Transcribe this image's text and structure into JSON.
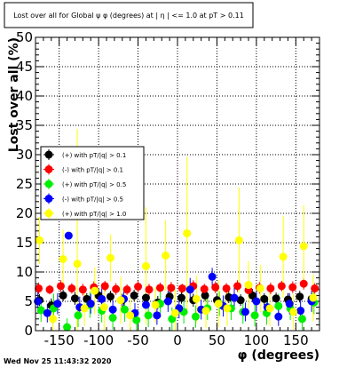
{
  "chart_data": {
    "type": "scatter",
    "title": "Lost over all for Global ψ φ (degrees) at | η | <= 1.0 at pT > 0.11",
    "xlabel": "φ (degrees)",
    "ylabel": "Lost over all (%)",
    "xlim": [
      -180,
      180
    ],
    "ylim": [
      0,
      50
    ],
    "x_ticks": [
      "-150",
      "-100",
      "-50",
      "0",
      "50",
      "100",
      "150"
    ],
    "y_ticks": [
      "0",
      "5",
      "10",
      "15",
      "20",
      "25",
      "30",
      "35",
      "40",
      "45",
      "50"
    ],
    "grid": true,
    "legend_position": "left",
    "timestamp": "Wed Nov 25 11:43:32 2020",
    "series": [
      {
        "name": "(+) with pT/|q| > 0.1",
        "color": "#000000",
        "points": [
          {
            "x": -175,
            "y": 5.2,
            "e": 1.0
          },
          {
            "x": -160,
            "y": 4.3,
            "e": 1.2
          },
          {
            "x": -145,
            "y": 6.0,
            "e": 1.0
          },
          {
            "x": -130,
            "y": 5.5,
            "e": 1.1
          },
          {
            "x": -115,
            "y": 5.4,
            "e": 1.0
          },
          {
            "x": -100,
            "y": 6.0,
            "e": 1.1
          },
          {
            "x": -85,
            "y": 5.8,
            "e": 1.0
          },
          {
            "x": -70,
            "y": 5.2,
            "e": 1.1
          },
          {
            "x": -55,
            "y": 6.0,
            "e": 1.0
          },
          {
            "x": -40,
            "y": 5.6,
            "e": 1.0
          },
          {
            "x": -25,
            "y": 4.8,
            "e": 1.1
          },
          {
            "x": -10,
            "y": 5.8,
            "e": 1.0
          },
          {
            "x": 5,
            "y": 5.6,
            "e": 1.0
          },
          {
            "x": 20,
            "y": 5.2,
            "e": 1.1
          },
          {
            "x": 35,
            "y": 6.0,
            "e": 1.0
          },
          {
            "x": 50,
            "y": 5.2,
            "e": 1.1
          },
          {
            "x": 65,
            "y": 5.7,
            "e": 1.0
          },
          {
            "x": 80,
            "y": 5.2,
            "e": 1.0
          },
          {
            "x": 95,
            "y": 6.0,
            "e": 1.1
          },
          {
            "x": 110,
            "y": 5.4,
            "e": 1.0
          },
          {
            "x": 125,
            "y": 5.5,
            "e": 1.0
          },
          {
            "x": 140,
            "y": 5.3,
            "e": 1.1
          },
          {
            "x": 155,
            "y": 5.8,
            "e": 1.0
          },
          {
            "x": 170,
            "y": 5.4,
            "e": 1.0
          }
        ]
      },
      {
        "name": "(-) with pT/|q| > 0.1",
        "color": "#ff0000",
        "points": [
          {
            "x": -176,
            "y": 7.2,
            "e": 1.0
          },
          {
            "x": -162,
            "y": 7.0,
            "e": 0.8
          },
          {
            "x": -148,
            "y": 7.6,
            "e": 1.0
          },
          {
            "x": -134,
            "y": 7.2,
            "e": 0.9
          },
          {
            "x": -120,
            "y": 7.0,
            "e": 1.0
          },
          {
            "x": -106,
            "y": 7.4,
            "e": 1.0
          },
          {
            "x": -92,
            "y": 7.6,
            "e": 0.9
          },
          {
            "x": -78,
            "y": 7.1,
            "e": 1.0
          },
          {
            "x": -64,
            "y": 7.0,
            "e": 0.9
          },
          {
            "x": -50,
            "y": 7.5,
            "e": 1.0
          },
          {
            "x": -36,
            "y": 7.0,
            "e": 1.0
          },
          {
            "x": -22,
            "y": 7.3,
            "e": 0.9
          },
          {
            "x": -8,
            "y": 7.3,
            "e": 1.0
          },
          {
            "x": 6,
            "y": 7.2,
            "e": 0.8
          },
          {
            "x": 20,
            "y": 7.6,
            "e": 1.0
          },
          {
            "x": 34,
            "y": 7.1,
            "e": 0.9
          },
          {
            "x": 48,
            "y": 7.4,
            "e": 1.0
          },
          {
            "x": 62,
            "y": 7.2,
            "e": 0.9
          },
          {
            "x": 76,
            "y": 7.6,
            "e": 1.0
          },
          {
            "x": 90,
            "y": 6.9,
            "e": 0.9
          },
          {
            "x": 104,
            "y": 7.3,
            "e": 1.0
          },
          {
            "x": 118,
            "y": 7.2,
            "e": 1.0
          },
          {
            "x": 132,
            "y": 7.6,
            "e": 0.9
          },
          {
            "x": 146,
            "y": 7.4,
            "e": 1.0
          },
          {
            "x": 160,
            "y": 8.0,
            "e": 1.0
          },
          {
            "x": 174,
            "y": 7.2,
            "e": 0.9
          }
        ]
      },
      {
        "name": "(+) with pT/|q| > 0.5",
        "color": "#00ee00",
        "points": [
          {
            "x": -173,
            "y": 3.5,
            "e": 2.0
          },
          {
            "x": -157,
            "y": 3.8,
            "e": 2.5
          },
          {
            "x": -140,
            "y": 0.6,
            "e": 1.5
          },
          {
            "x": -126,
            "y": 2.6,
            "e": 2.0
          },
          {
            "x": -111,
            "y": 4.4,
            "e": 2.2
          },
          {
            "x": -96,
            "y": 3.4,
            "e": 2.0
          },
          {
            "x": -82,
            "y": 2.2,
            "e": 2.0
          },
          {
            "x": -67,
            "y": 3.6,
            "e": 2.1
          },
          {
            "x": -52,
            "y": 1.8,
            "e": 1.8
          },
          {
            "x": -37,
            "y": 2.6,
            "e": 2.0
          },
          {
            "x": -22,
            "y": 4.6,
            "e": 2.2
          },
          {
            "x": -7,
            "y": 2.0,
            "e": 2.0
          },
          {
            "x": 8,
            "y": 3.2,
            "e": 2.0
          },
          {
            "x": 23,
            "y": 2.4,
            "e": 1.9
          },
          {
            "x": 38,
            "y": 3.8,
            "e": 2.0
          },
          {
            "x": 53,
            "y": 4.6,
            "e": 2.1
          },
          {
            "x": 68,
            "y": 3.8,
            "e": 2.0
          },
          {
            "x": 83,
            "y": 3.2,
            "e": 2.0
          },
          {
            "x": 98,
            "y": 2.6,
            "e": 1.9
          },
          {
            "x": 113,
            "y": 3.0,
            "e": 2.0
          },
          {
            "x": 128,
            "y": 4.2,
            "e": 2.1
          },
          {
            "x": 143,
            "y": 3.8,
            "e": 2.0
          },
          {
            "x": 158,
            "y": 2.0,
            "e": 1.9
          },
          {
            "x": 173,
            "y": 4.8,
            "e": 2.0
          }
        ]
      },
      {
        "name": "(-) with pT/|q| > 0.5",
        "color": "#0000ff",
        "points": [
          {
            "x": -177,
            "y": 5.0,
            "e": 1.8
          },
          {
            "x": -165,
            "y": 3.0,
            "e": 1.6
          },
          {
            "x": -152,
            "y": 4.6,
            "e": 1.8
          },
          {
            "x": -138,
            "y": 16.2,
            "e": 0.4
          },
          {
            "x": -124,
            "y": 4.0,
            "e": 1.8
          },
          {
            "x": -110,
            "y": 4.6,
            "e": 1.7
          },
          {
            "x": -96,
            "y": 5.4,
            "e": 1.8
          },
          {
            "x": -82,
            "y": 3.6,
            "e": 1.6
          },
          {
            "x": -68,
            "y": 5.4,
            "e": 1.8
          },
          {
            "x": -54,
            "y": 3.0,
            "e": 1.7
          },
          {
            "x": -40,
            "y": 4.4,
            "e": 1.8
          },
          {
            "x": -26,
            "y": 2.6,
            "e": 1.6
          },
          {
            "x": -12,
            "y": 5.0,
            "e": 1.8
          },
          {
            "x": 2,
            "y": 3.8,
            "e": 1.7
          },
          {
            "x": 16,
            "y": 7.0,
            "e": 2.0
          },
          {
            "x": 30,
            "y": 3.6,
            "e": 1.7
          },
          {
            "x": 44,
            "y": 9.2,
            "e": 1.5
          },
          {
            "x": 58,
            "y": 4.2,
            "e": 1.8
          },
          {
            "x": 72,
            "y": 5.6,
            "e": 1.7
          },
          {
            "x": 86,
            "y": 3.2,
            "e": 1.6
          },
          {
            "x": 100,
            "y": 5.0,
            "e": 1.8
          },
          {
            "x": 114,
            "y": 4.0,
            "e": 1.7
          },
          {
            "x": 128,
            "y": 2.4,
            "e": 1.6
          },
          {
            "x": 142,
            "y": 4.6,
            "e": 1.8
          },
          {
            "x": 156,
            "y": 3.4,
            "e": 1.7
          },
          {
            "x": 170,
            "y": 5.0,
            "e": 1.8
          }
        ]
      },
      {
        "name": "(+) with pT/|q| > 1.0",
        "color": "#ffff00",
        "points": [
          {
            "x": -175,
            "y": 15.4,
            "e": 4.0
          },
          {
            "x": -158,
            "y": 2.0,
            "e": 3.0
          },
          {
            "x": -145,
            "y": 12.2,
            "e": 5.0
          },
          {
            "x": -127,
            "y": 11.4,
            "e": 23.0
          },
          {
            "x": -118,
            "y": 3.8,
            "e": 3.0
          },
          {
            "x": -105,
            "y": 6.8,
            "e": 4.0
          },
          {
            "x": -93,
            "y": 4.0,
            "e": 4.0
          },
          {
            "x": -85,
            "y": 12.4,
            "e": 4.0
          },
          {
            "x": -72,
            "y": 5.2,
            "e": 4.0
          },
          {
            "x": -60,
            "y": 2.6,
            "e": 3.0
          },
          {
            "x": -40,
            "y": 11.0,
            "e": 10.0
          },
          {
            "x": -28,
            "y": 4.4,
            "e": 3.0
          },
          {
            "x": -15,
            "y": 12.8,
            "e": 6.0
          },
          {
            "x": -3,
            "y": 3.0,
            "e": 4.0
          },
          {
            "x": 12,
            "y": 16.6,
            "e": 13.0
          },
          {
            "x": 24,
            "y": 5.4,
            "e": 4.0
          },
          {
            "x": 36,
            "y": 3.4,
            "e": 3.0
          },
          {
            "x": 52,
            "y": 4.6,
            "e": 4.0
          },
          {
            "x": 63,
            "y": 3.8,
            "e": 3.0
          },
          {
            "x": 78,
            "y": 15.4,
            "e": 9.0
          },
          {
            "x": 90,
            "y": 7.8,
            "e": 4.0
          },
          {
            "x": 105,
            "y": 7.2,
            "e": 4.0
          },
          {
            "x": 117,
            "y": 3.8,
            "e": 3.0
          },
          {
            "x": 134,
            "y": 12.6,
            "e": 7.0
          },
          {
            "x": 147,
            "y": 3.2,
            "e": 3.0
          },
          {
            "x": 160,
            "y": 14.4,
            "e": 7.0
          },
          {
            "x": 172,
            "y": 5.6,
            "e": 4.0
          }
        ]
      }
    ]
  }
}
